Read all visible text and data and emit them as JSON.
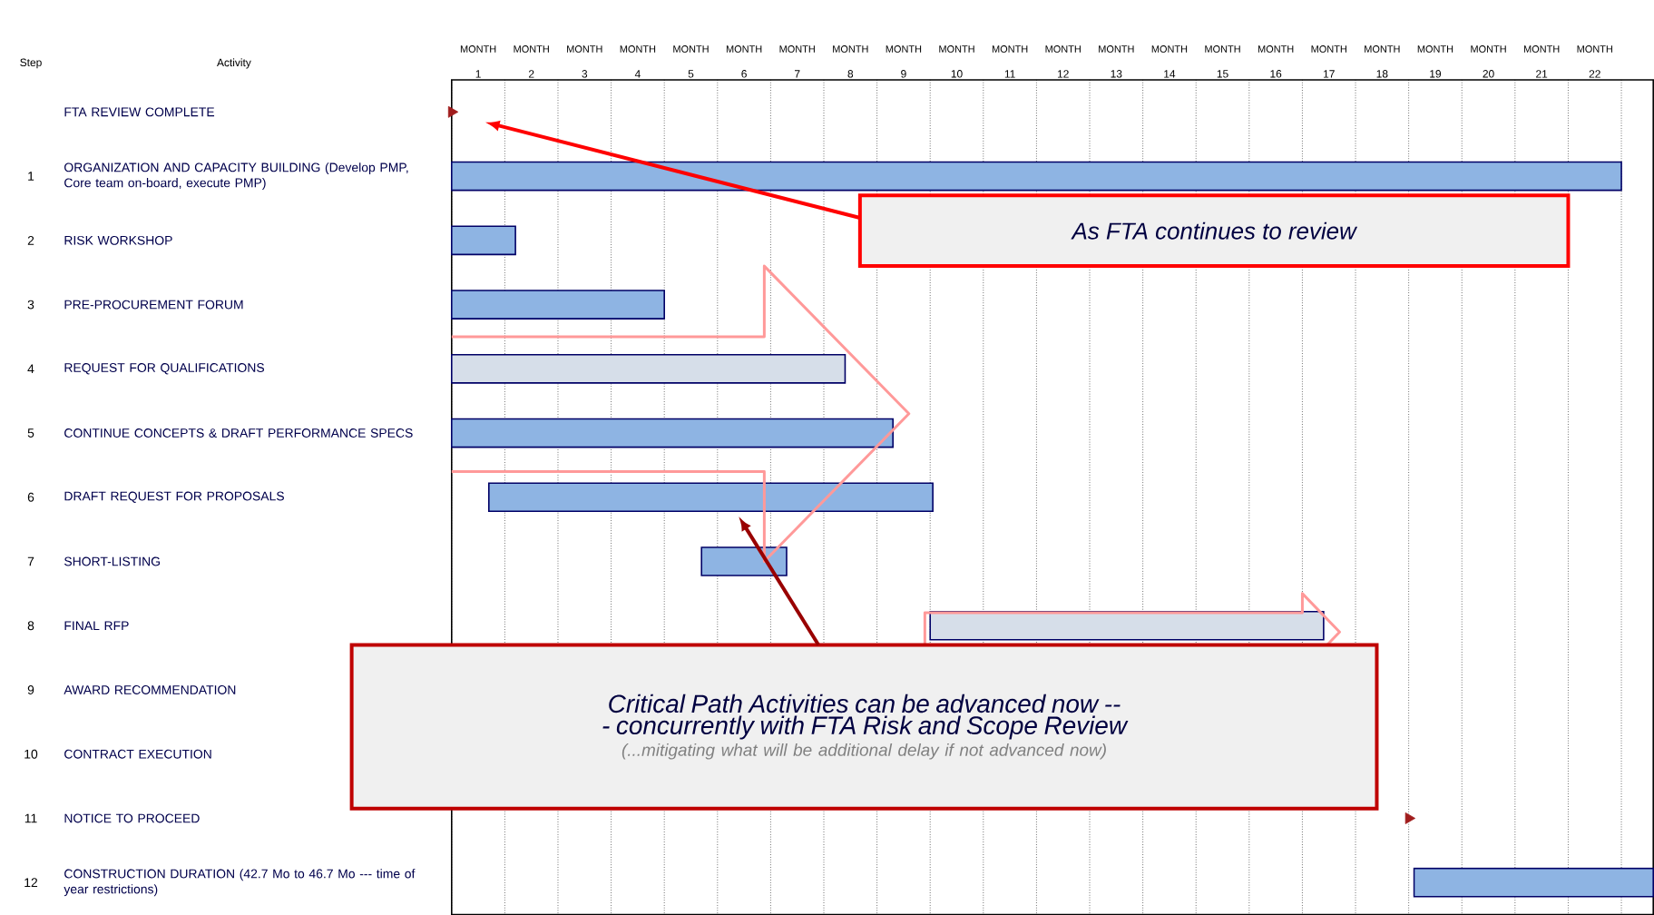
{
  "chart_data": {
    "type": "bar",
    "orientation": "horizontal",
    "categories": [
      "FTA REVIEW COMPLETE",
      "ORGANIZATION AND CAPACITY BUILDING (Develop PMP, Core team on-board, execute PMP)",
      "RISK WORKSHOP",
      "PRE-PROCUREMENT FORUM",
      "REQUEST FOR QUALIFICATIONS",
      "CONTINUE CONCEPTS & DRAFT PERFORMANCE SPECS",
      "DRAFT REQUEST FOR PROPOSALS",
      "SHORT-LISTING",
      "FINAL RFP",
      "AWARD RECOMMENDATION",
      "CONTRACT EXECUTION",
      "NOTICE TO PROCEED",
      "CONSTRUCTION DURATION (42.7 Mo to 46.7 Mo --- time of year restrictions)"
    ],
    "y2_categories": [
      null,
      "1",
      "2",
      "3",
      "4",
      "5",
      "6",
      "7",
      "8",
      "9",
      "10",
      "11",
      "12"
    ],
    "series": [
      {
        "type": "bar",
        "colors": [
          "#8eb4e3",
          "#8eb4e3",
          "#8eb4e3",
          "#8eb4e3",
          "#d6dee9",
          "#8eb4e3",
          "#8eb4e3",
          "#8eb4e3",
          "#d6dee9",
          "#8eb4e3",
          "#8eb4e3",
          "#8eb4e3",
          "#8eb4e3"
        ],
        "base": [
          null,
          0.5,
          0.5,
          0.5,
          0.5,
          0.5,
          1.2,
          5.2,
          9.5,
          null,
          null,
          null,
          18.6
        ],
        "values": [
          null,
          22,
          1.2,
          4,
          7.4,
          8.3,
          8.35,
          1.6,
          7.4,
          null,
          null,
          null,
          4.5
        ]
      },
      {
        "type": "scatter",
        "marker": "triangle",
        "color": "#a01c1c",
        "values": [
          0.5,
          null,
          null,
          null,
          null,
          null,
          null,
          null,
          null,
          null,
          null,
          18.5,
          null
        ]
      }
    ],
    "xlim": [
      0.5,
      23.1
    ],
    "xlabel": "MONTH",
    "xticks": [
      1,
      2,
      3,
      4,
      5,
      6,
      7,
      8,
      9,
      10,
      11,
      12,
      13,
      14,
      15,
      16,
      17,
      18,
      19,
      20,
      21,
      22
    ],
    "grid": true,
    "annotations": [
      "Step",
      "Activity",
      "As FTA continues to review",
      "Critical Path Activities can be advanced now --- concurrently with FTA Risk and Scope Review",
      "(...mitigating what will be additional delay if not advanced now)"
    ]
  }
}
